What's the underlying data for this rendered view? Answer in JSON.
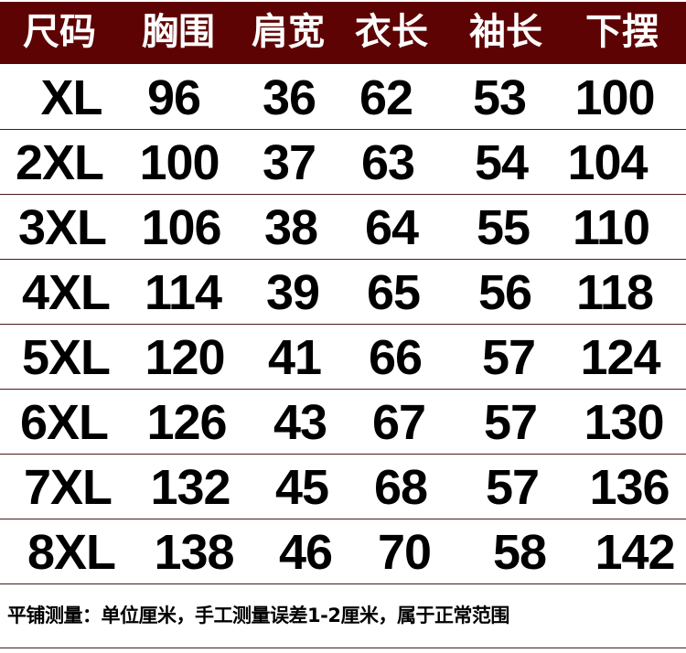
{
  "colors": {
    "header_bg": "#5e0303",
    "header_text": "#ffffff",
    "divider": "#4a1a1a"
  },
  "headers": [
    "尺码",
    "胸围",
    "肩宽",
    "衣长",
    "袖长",
    "下摆"
  ],
  "rows": [
    [
      "XL",
      "96",
      "36",
      "62",
      "53",
      "100"
    ],
    [
      "2XL",
      "100",
      "37",
      "63",
      "54",
      "104"
    ],
    [
      "3XL",
      "106",
      "38",
      "64",
      "55",
      "110"
    ],
    [
      "4XL",
      "114",
      "39",
      "65",
      "56",
      "118"
    ],
    [
      "5XL",
      "120",
      "41",
      "66",
      "57",
      "124"
    ],
    [
      "6XL",
      "126",
      "43",
      "67",
      "57",
      "130"
    ],
    [
      "7XL",
      "132",
      "45",
      "68",
      "57",
      "136"
    ],
    [
      "8XL",
      "138",
      "46",
      "70",
      "58",
      "142"
    ]
  ],
  "footer_note": "平铺测量：单位厘米，手工测量误差1-2厘米，属于正常范围"
}
